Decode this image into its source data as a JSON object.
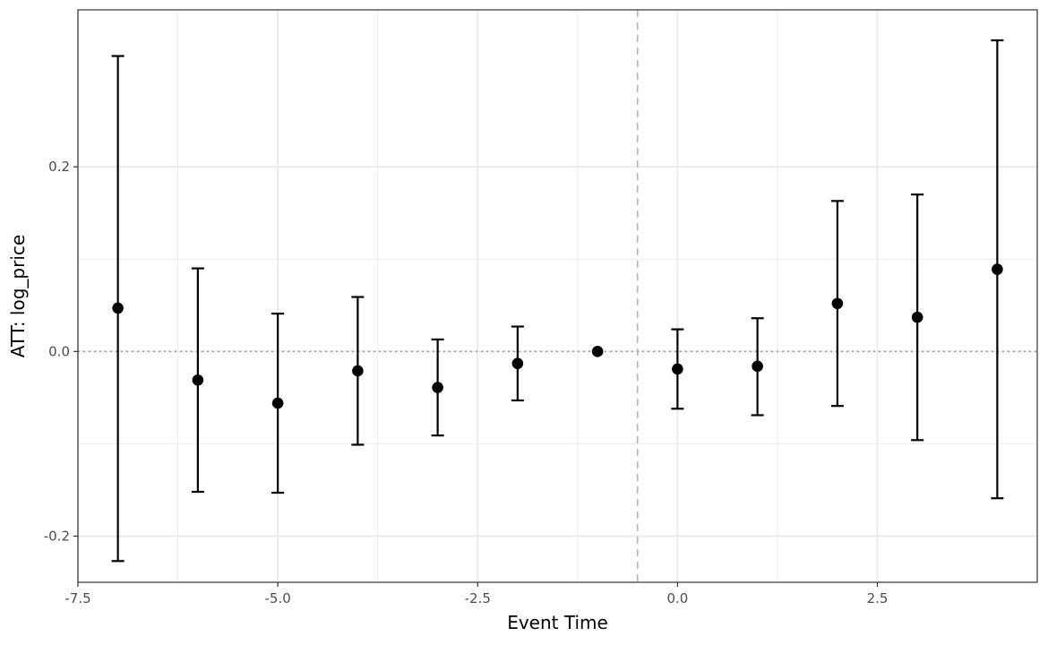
{
  "chart_data": {
    "type": "scatter",
    "subtype": "event-study coefficient plot with error bars",
    "title": "",
    "xlabel": "Event Time",
    "ylabel": "ATT: log_price",
    "xlim": [
      -7.5,
      4.5
    ],
    "ylim": [
      -0.25,
      0.37
    ],
    "x_ticks": [
      -7.5,
      -5.0,
      -2.5,
      0.0,
      2.5
    ],
    "x_tick_labels": [
      "-7.5",
      "-5.0",
      "-2.5",
      "0.0",
      "2.5"
    ],
    "y_ticks": [
      -0.2,
      0.0,
      0.2
    ],
    "y_tick_labels": [
      "-0.2",
      "0.0",
      "0.2"
    ],
    "grid": true,
    "vline_dashed": -0.5,
    "hline_dotted": 0.0,
    "colors": {
      "points": "#000000",
      "grid": "#ebebeb",
      "reference_lines": "#999999",
      "axis_text": "#4d4d4d",
      "panel_border": "#333333"
    },
    "series": [
      {
        "points": [
          {
            "x": -7,
            "y": 0.047,
            "lo": -0.227,
            "hi": 0.32
          },
          {
            "x": -6,
            "y": -0.031,
            "lo": -0.152,
            "hi": 0.09
          },
          {
            "x": -5,
            "y": -0.056,
            "lo": -0.153,
            "hi": 0.041
          },
          {
            "x": -4,
            "y": -0.021,
            "lo": -0.101,
            "hi": 0.059
          },
          {
            "x": -3,
            "y": -0.039,
            "lo": -0.091,
            "hi": 0.013
          },
          {
            "x": -2,
            "y": -0.013,
            "lo": -0.053,
            "hi": 0.027
          },
          {
            "x": -1,
            "y": 0.0
          },
          {
            "x": 0,
            "y": -0.019,
            "lo": -0.062,
            "hi": 0.024
          },
          {
            "x": 1,
            "y": -0.016,
            "lo": -0.069,
            "hi": 0.036
          },
          {
            "x": 2,
            "y": 0.052,
            "lo": -0.059,
            "hi": 0.163
          },
          {
            "x": 3,
            "y": 0.037,
            "lo": -0.096,
            "hi": 0.17
          },
          {
            "x": 4,
            "y": 0.089,
            "lo": -0.159,
            "hi": 0.337
          }
        ]
      }
    ]
  }
}
